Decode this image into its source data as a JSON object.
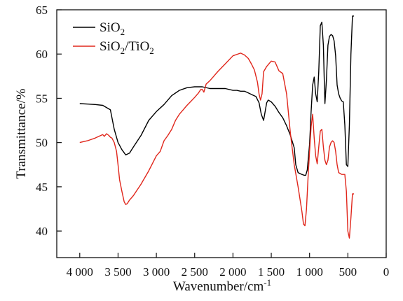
{
  "chart_data": {
    "type": "line",
    "title": "",
    "xlabel": "Wavenumber/cm",
    "xlabel_sup": "-1",
    "ylabel": "Transmittance/%",
    "xlim": [
      4300,
      0
    ],
    "ylim": [
      37,
      65
    ],
    "x_reversed": true,
    "x_ticks": [
      4000,
      3500,
      3000,
      2500,
      2000,
      1500,
      1000,
      500,
      0
    ],
    "x_tick_labels": [
      "4 000",
      "3 500",
      "3 000",
      "2 500",
      "2 000",
      "1 500",
      "1 000",
      "500",
      "0"
    ],
    "y_ticks": [
      40,
      45,
      50,
      55,
      60,
      65
    ],
    "y_tick_labels": [
      "40",
      "45",
      "50",
      "55",
      "60",
      "65"
    ],
    "grid": false,
    "legend_position": "top-left",
    "series": [
      {
        "name": "SiO2",
        "legend": {
          "base": "SiO",
          "sub": "2"
        },
        "color": "#000000",
        "x": [
          4000,
          3800,
          3700,
          3600,
          3550,
          3500,
          3450,
          3400,
          3350,
          3300,
          3200,
          3100,
          3000,
          2900,
          2800,
          2700,
          2600,
          2500,
          2400,
          2300,
          2200,
          2100,
          2000,
          1950,
          1900,
          1850,
          1800,
          1750,
          1700,
          1660,
          1630,
          1600,
          1560,
          1540,
          1500,
          1450,
          1400,
          1350,
          1300,
          1250,
          1200,
          1180,
          1150,
          1100,
          1070,
          1050,
          1030,
          1000,
          980,
          960,
          940,
          920,
          900,
          880,
          860,
          840,
          820,
          810,
          800,
          780,
          760,
          740,
          720,
          700,
          680,
          660,
          640,
          620,
          600,
          580,
          560,
          540,
          520,
          500,
          480,
          460,
          440,
          420
        ],
        "y": [
          54.4,
          54.3,
          54.2,
          53.7,
          51.5,
          50.0,
          49.2,
          48.6,
          48.8,
          49.5,
          50.8,
          52.5,
          53.5,
          54.3,
          55.3,
          55.9,
          56.2,
          56.3,
          56.3,
          56.1,
          56.1,
          56.1,
          55.9,
          55.9,
          55.8,
          55.8,
          55.6,
          55.4,
          55.2,
          54.5,
          53.2,
          52.5,
          54.5,
          54.8,
          54.6,
          54.1,
          53.4,
          52.8,
          51.9,
          50.8,
          49.4,
          47.5,
          46.6,
          46.4,
          46.3,
          46.3,
          46.9,
          49.8,
          53.5,
          56.5,
          57.4,
          55.5,
          54.6,
          58.0,
          63.2,
          63.6,
          61.0,
          57.5,
          54.4,
          57.0,
          61.0,
          62.0,
          62.2,
          62.1,
          61.5,
          59.8,
          56.5,
          55.5,
          55.0,
          54.7,
          54.6,
          52.0,
          47.5,
          47.3,
          52.0,
          60.0,
          64.3,
          64.3
        ]
      },
      {
        "name": "SiO2/TiO2",
        "legend": {
          "base": "SiO",
          "sub": "2",
          "mid": "/TiO",
          "sub2": "2"
        },
        "color": "#e0261b",
        "x": [
          4000,
          3900,
          3800,
          3750,
          3700,
          3680,
          3650,
          3620,
          3600,
          3580,
          3550,
          3520,
          3500,
          3480,
          3450,
          3420,
          3400,
          3380,
          3350,
          3300,
          3200,
          3100,
          3000,
          2950,
          2900,
          2850,
          2800,
          2750,
          2700,
          2650,
          2600,
          2500,
          2450,
          2420,
          2400,
          2380,
          2350,
          2300,
          2250,
          2200,
          2100,
          2000,
          1900,
          1850,
          1800,
          1760,
          1720,
          1700,
          1680,
          1660,
          1640,
          1620,
          1600,
          1560,
          1500,
          1450,
          1400,
          1350,
          1300,
          1250,
          1200,
          1150,
          1100,
          1080,
          1060,
          1040,
          1020,
          1000,
          980,
          960,
          940,
          920,
          900,
          880,
          860,
          840,
          820,
          800,
          780,
          760,
          740,
          720,
          700,
          680,
          660,
          640,
          620,
          600,
          580,
          560,
          540,
          520,
          500,
          480,
          460,
          440,
          420
        ],
        "y": [
          50.0,
          50.2,
          50.5,
          50.7,
          50.9,
          50.7,
          51.0,
          50.8,
          50.6,
          50.5,
          50.0,
          49.0,
          47.5,
          45.8,
          44.5,
          43.3,
          43.0,
          43.1,
          43.5,
          44.0,
          45.3,
          46.8,
          48.5,
          49.0,
          50.2,
          50.8,
          51.5,
          52.5,
          53.2,
          53.7,
          54.2,
          55.1,
          55.6,
          56.0,
          56.0,
          55.7,
          56.6,
          57.0,
          57.5,
          58.0,
          58.9,
          59.8,
          60.1,
          59.9,
          59.5,
          58.9,
          58.2,
          57.5,
          56.8,
          55.5,
          54.8,
          55.5,
          58.0,
          58.6,
          59.2,
          59.1,
          58.1,
          57.8,
          55.5,
          51.0,
          47.5,
          45.0,
          42.2,
          40.8,
          40.6,
          42.5,
          46.0,
          49.0,
          51.8,
          53.2,
          50.5,
          48.5,
          47.6,
          49.5,
          51.3,
          51.5,
          49.5,
          48.0,
          47.5,
          48.0,
          49.5,
          50.0,
          50.2,
          50.0,
          49.0,
          47.5,
          46.6,
          46.5,
          46.4,
          46.4,
          46.4,
          44.5,
          40.0,
          39.2,
          41.5,
          44.2,
          44.2
        ]
      }
    ]
  }
}
